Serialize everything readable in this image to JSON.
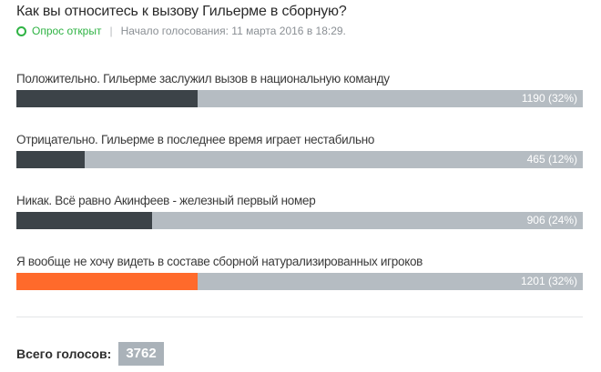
{
  "poll": {
    "question": "Как вы относитесь к вызову Гильерме в сборную?",
    "status": "Опрос открыт",
    "start_info": "Начало голосования: 11 марта 2016 в 18:29.",
    "status_color": "#2fb344",
    "bar_track_color": "#b5bcc2",
    "bar_fill_color": "#3c4348",
    "bar_highlight_color": "#ff6a2b"
  },
  "options": [
    {
      "label": "Положительно. Гильерме заслужил вызов в национальную команду",
      "votes_text": "1190 (32%)",
      "percent": 32,
      "highlight": false
    },
    {
      "label": "Отрицательно. Гильерме в последнее время играет нестабильно",
      "votes_text": "465 (12%)",
      "percent": 12,
      "highlight": false
    },
    {
      "label": "Никак. Всё равно Акинфеев - железный первый номер",
      "votes_text": "906 (24%)",
      "percent": 24,
      "highlight": false
    },
    {
      "label": "Я вообще не хочу видеть в составе сборной натурализированных игроков",
      "votes_text": "1201 (32%)",
      "percent": 32,
      "highlight": true
    }
  ],
  "total": {
    "label": "Всего голосов:",
    "value": "3762"
  }
}
